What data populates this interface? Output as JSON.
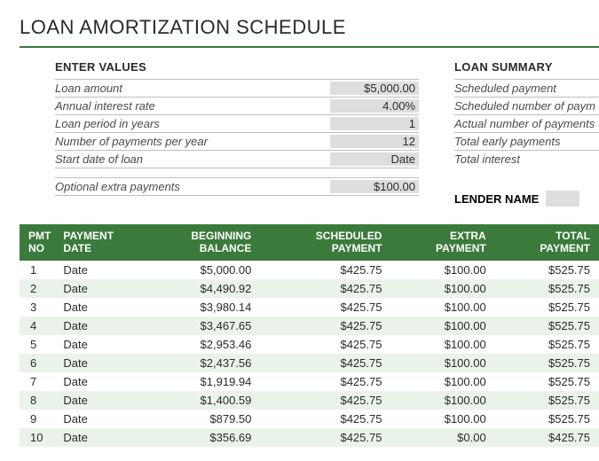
{
  "title": "LOAN AMORTIZATION SCHEDULE",
  "colors": {
    "header_green": "#3a7a3a",
    "row_stripe": "#eaf3ea",
    "value_bg": "#dedede",
    "border_gray": "#bfbfbf",
    "text_dark": "#2a2a2a",
    "text_muted": "#4a4a4a",
    "background": "#ffffff"
  },
  "enter_values": {
    "header": "ENTER VALUES",
    "rows": [
      {
        "label": "Loan amount",
        "value": "$5,000.00"
      },
      {
        "label": "Annual interest rate",
        "value": "4.00%"
      },
      {
        "label": "Loan period in years",
        "value": "1"
      },
      {
        "label": "Number of payments per year",
        "value": "12"
      },
      {
        "label": "Start date of loan",
        "value": "Date"
      }
    ],
    "optional": {
      "label": "Optional extra payments",
      "value": "$100.00"
    }
  },
  "loan_summary": {
    "header": "LOAN SUMMARY",
    "rows": [
      {
        "label": "Scheduled payment"
      },
      {
        "label": "Scheduled number of paym"
      },
      {
        "label": "Actual number of payments"
      },
      {
        "label": "Total early payments"
      },
      {
        "label": "Total interest"
      }
    ],
    "lender_label": "LENDER NAME"
  },
  "schedule": {
    "columns": [
      "PMT\nNO",
      "PAYMENT\nDATE",
      "BEGINNING\nBALANCE",
      "SCHEDULED\nPAYMENT",
      "EXTRA\nPAYMENT",
      "TOTAL\nPAYMENT"
    ],
    "rows": [
      [
        "1",
        "Date",
        "$5,000.00",
        "$425.75",
        "$100.00",
        "$525.75"
      ],
      [
        "2",
        "Date",
        "$4,490.92",
        "$425.75",
        "$100.00",
        "$525.75"
      ],
      [
        "3",
        "Date",
        "$3,980.14",
        "$425.75",
        "$100.00",
        "$525.75"
      ],
      [
        "4",
        "Date",
        "$3,467.65",
        "$425.75",
        "$100.00",
        "$525.75"
      ],
      [
        "5",
        "Date",
        "$2,953.46",
        "$425.75",
        "$100.00",
        "$525.75"
      ],
      [
        "6",
        "Date",
        "$2,437.56",
        "$425.75",
        "$100.00",
        "$525.75"
      ],
      [
        "7",
        "Date",
        "$1,919.94",
        "$425.75",
        "$100.00",
        "$525.75"
      ],
      [
        "8",
        "Date",
        "$1,400.59",
        "$425.75",
        "$100.00",
        "$525.75"
      ],
      [
        "9",
        "Date",
        "$879.50",
        "$425.75",
        "$100.00",
        "$525.75"
      ],
      [
        "10",
        "Date",
        "$356.69",
        "$425.75",
        "$0.00",
        "$425.75"
      ]
    ]
  }
}
